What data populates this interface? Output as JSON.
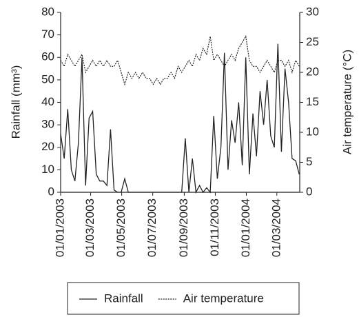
{
  "chart_data": {
    "type": "line",
    "y_label": "Rainfall (mm³)",
    "y2_label": "Air temperature (°C)",
    "x": [
      "2003-01-01",
      "2003-01-08",
      "2003-01-15",
      "2003-01-22",
      "2003-01-29",
      "2003-02-05",
      "2003-02-12",
      "2003-02-19",
      "2003-02-26",
      "2003-03-05",
      "2003-03-12",
      "2003-03-19",
      "2003-03-26",
      "2003-04-02",
      "2003-04-09",
      "2003-04-16",
      "2003-04-23",
      "2003-04-30",
      "2003-05-07",
      "2003-05-14",
      "2003-05-21",
      "2003-05-28",
      "2003-06-04",
      "2003-06-11",
      "2003-06-18",
      "2003-06-25",
      "2003-07-02",
      "2003-07-09",
      "2003-07-16",
      "2003-07-23",
      "2003-07-30",
      "2003-08-06",
      "2003-08-13",
      "2003-08-20",
      "2003-08-27",
      "2003-09-03",
      "2003-09-10",
      "2003-09-17",
      "2003-09-24",
      "2003-10-01",
      "2003-10-08",
      "2003-10-15",
      "2003-10-22",
      "2003-10-29",
      "2003-11-05",
      "2003-11-12",
      "2003-11-19",
      "2003-11-26",
      "2003-12-03",
      "2003-12-10",
      "2003-12-17",
      "2003-12-24",
      "2003-12-31",
      "2004-01-07",
      "2004-01-14",
      "2004-01-21",
      "2004-01-28",
      "2004-02-04",
      "2004-02-11",
      "2004-02-18",
      "2004-02-25",
      "2004-03-03",
      "2004-03-10",
      "2004-03-17",
      "2004-03-24",
      "2004-03-31",
      "2004-04-07",
      "2004-04-14"
    ],
    "series": [
      {
        "name": "Rainfall",
        "color": "#222222",
        "dash": false,
        "values": [
          26,
          15,
          37,
          10,
          5,
          22,
          60,
          3,
          33,
          36,
          8,
          5,
          5,
          3,
          28,
          1,
          0,
          0,
          6,
          0,
          0,
          0,
          0,
          0,
          0,
          0,
          0,
          0,
          0,
          0,
          0,
          0,
          0,
          0,
          0,
          24,
          0,
          15,
          0,
          3,
          0,
          2,
          0,
          34,
          6,
          20,
          62,
          10,
          32,
          22,
          40,
          12,
          60,
          8,
          35,
          16,
          45,
          30,
          50,
          25,
          20,
          66,
          18,
          55,
          40,
          15,
          14,
          8
        ]
      },
      {
        "name": "Air temperature",
        "color": "#222222",
        "dash": true,
        "axis": "y2",
        "values": [
          22,
          21,
          23,
          22,
          21,
          22,
          23,
          20,
          21,
          22,
          21,
          22,
          21,
          22,
          21,
          21,
          22,
          20,
          18,
          20,
          19,
          20,
          19,
          20,
          19,
          19,
          18,
          19,
          18,
          19,
          19,
          20,
          19,
          21,
          20,
          21,
          22,
          21,
          23,
          22,
          24,
          23,
          26,
          22,
          23,
          22,
          21,
          22,
          23,
          22,
          24,
          25,
          26,
          22,
          21,
          21,
          20,
          21,
          22,
          21,
          20,
          22,
          22,
          21,
          22,
          20,
          22,
          21
        ]
      }
    ],
    "xlim": [
      "2003-01-01",
      "2004-04-15"
    ],
    "xticks": [
      {
        "value": "2003-01-01",
        "label": "01/01/2003"
      },
      {
        "value": "2003-03-01",
        "label": "01/03/2003"
      },
      {
        "value": "2003-05-01",
        "label": "01/05/2003"
      },
      {
        "value": "2003-07-01",
        "label": "01/07/2003"
      },
      {
        "value": "2003-09-01",
        "label": "01/09/2003"
      },
      {
        "value": "2003-11-01",
        "label": "01/11/2003"
      },
      {
        "value": "2004-01-01",
        "label": "01/01/2004"
      },
      {
        "value": "2004-03-01",
        "label": "01/03/2004"
      }
    ],
    "ylim": [
      0,
      80
    ],
    "yticks": [
      0,
      10,
      20,
      30,
      40,
      50,
      60,
      70,
      80
    ],
    "y2lim": [
      0,
      30
    ],
    "y2ticks": [
      0,
      5,
      10,
      15,
      20,
      25,
      30
    ],
    "legend": "bottom"
  }
}
